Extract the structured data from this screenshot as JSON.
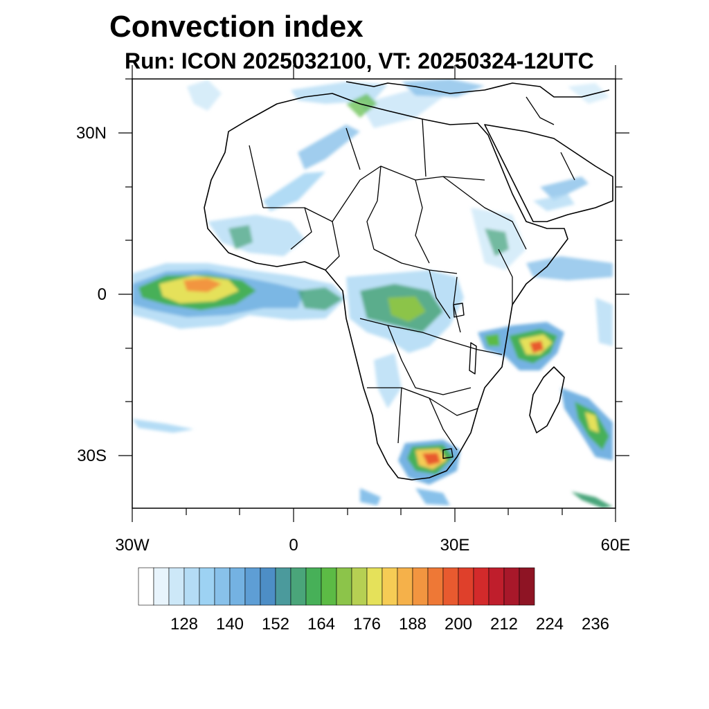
{
  "title": "Convection index",
  "subtitle": "Run: ICON 2025032100,  VT: 20250324-12UTC",
  "map": {
    "projection": "cylindrical equidistant",
    "lon_range": [
      -30,
      60
    ],
    "lat_range": [
      -40,
      40
    ],
    "lat_labels": [
      "30N",
      "0",
      "30S"
    ],
    "lon_labels": [
      "30W",
      "0",
      "30E",
      "60E"
    ]
  },
  "colorbar": {
    "labels": [
      "128",
      "140",
      "152",
      "164",
      "176",
      "188",
      "200",
      "212",
      "224",
      "236"
    ],
    "colors": [
      "#ffffff",
      "#e8f4fc",
      "#cde8f8",
      "#b4dcf5",
      "#9dd2f3",
      "#88c1ea",
      "#74b2e2",
      "#5e9ed5",
      "#4d8ec6",
      "#4b9a9c",
      "#4aa57a",
      "#47b058",
      "#5cbb45",
      "#8cc44a",
      "#b6d053",
      "#e5e15a",
      "#f6cc55",
      "#f5b14a",
      "#f29540",
      "#ee7836",
      "#e85a2f",
      "#df402b",
      "#d32a2b",
      "#bf1e2c",
      "#a8182a",
      "#8e1424"
    ]
  },
  "features": {
    "ocean_band": "convection-band-atlantic",
    "madagascar_storm": "convection-cell-madagascar",
    "south_africa_storm": "convection-cell-south-africa",
    "indian_ocean_band": "convection-band-indian-ocean",
    "congo_basin": "convection-congo-basin"
  }
}
